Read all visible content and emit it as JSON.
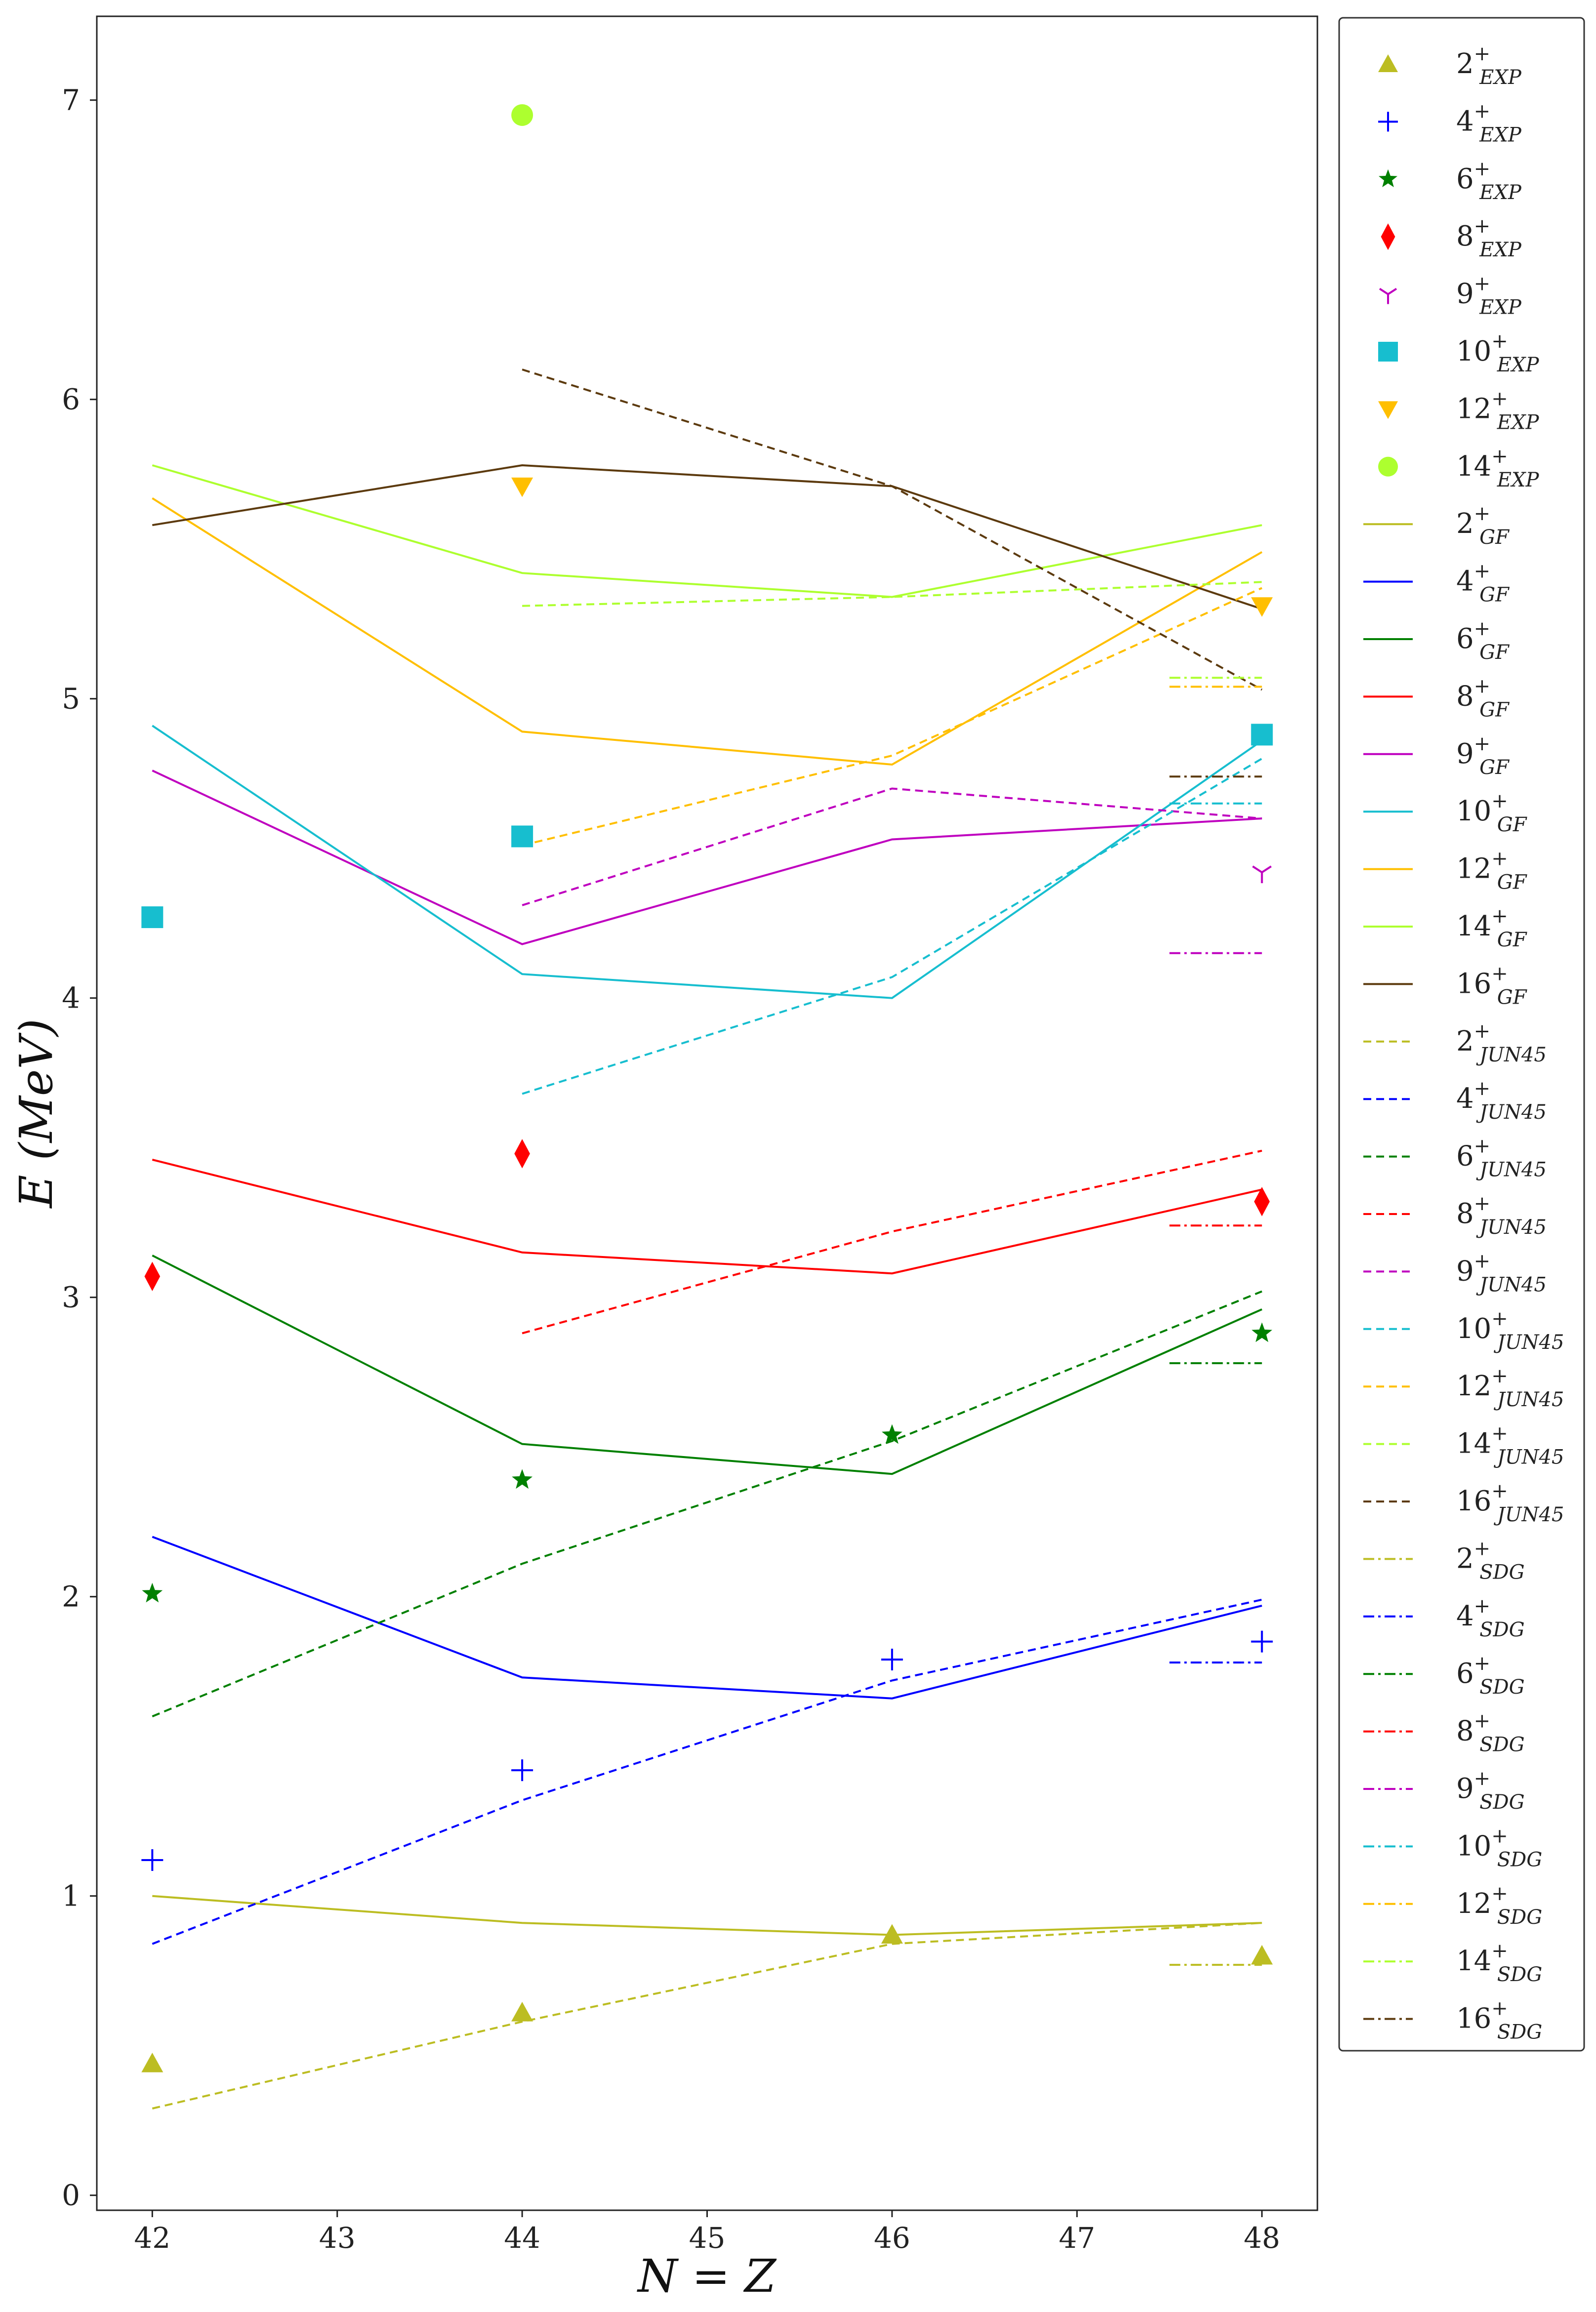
{
  "chart_data": {
    "type": "line",
    "title": "",
    "xlabel": "N = Z",
    "ylabel": "E (MeV)",
    "xlim": [
      41.7,
      48.3
    ],
    "ylim": [
      -0.05,
      7.28
    ],
    "xticks": [
      "42",
      "43",
      "44",
      "45",
      "46",
      "47",
      "48"
    ],
    "yticks": [
      "0",
      "1",
      "2",
      "3",
      "4",
      "5",
      "6",
      "7"
    ],
    "grid": false,
    "legend_position": "outside-right",
    "colors": {
      "2": "#bcbd22",
      "4": "#0000ff",
      "6": "#008000",
      "8": "#ff0000",
      "9": "#bf00bf",
      "10": "#17becf",
      "12": "#ffbf00",
      "14": "#adff2f",
      "16": "#5c3a0e"
    },
    "experimental": [
      {
        "name": "2",
        "label": "EXP",
        "marker": "triangle-up",
        "x": [
          42,
          44,
          46,
          48
        ],
        "y": [
          0.44,
          0.61,
          0.87,
          0.8
        ]
      },
      {
        "name": "4",
        "label": "EXP",
        "marker": "plus",
        "x": [
          42,
          44,
          46,
          48
        ],
        "y": [
          1.12,
          1.42,
          1.79,
          1.85
        ]
      },
      {
        "name": "6",
        "label": "EXP",
        "marker": "star",
        "x": [
          42,
          44,
          46,
          48
        ],
        "y": [
          2.01,
          2.39,
          2.54,
          2.88
        ]
      },
      {
        "name": "8",
        "label": "EXP",
        "marker": "thin-diamond",
        "x": [
          42,
          44,
          48
        ],
        "y": [
          3.07,
          3.48,
          3.32
        ]
      },
      {
        "name": "9",
        "label": "EXP",
        "marker": "tri-down",
        "x": [
          48
        ],
        "y": [
          4.42
        ]
      },
      {
        "name": "10",
        "label": "EXP",
        "marker": "square",
        "x": [
          42,
          44,
          48
        ],
        "y": [
          4.27,
          4.54,
          4.88
        ]
      },
      {
        "name": "12",
        "label": "EXP",
        "marker": "triangle-down",
        "x": [
          44,
          48
        ],
        "y": [
          5.71,
          5.31
        ]
      },
      {
        "name": "14",
        "label": "EXP",
        "marker": "circle",
        "x": [
          44
        ],
        "y": [
          6.95
        ]
      }
    ],
    "gf": [
      {
        "name": "2",
        "label": "GF",
        "x": [
          42,
          44,
          46,
          48
        ],
        "y": [
          1.0,
          0.91,
          0.87,
          0.91
        ]
      },
      {
        "name": "4",
        "label": "GF",
        "x": [
          42,
          44,
          46,
          48
        ],
        "y": [
          2.2,
          1.73,
          1.66,
          1.97
        ]
      },
      {
        "name": "6",
        "label": "GF",
        "x": [
          42,
          44,
          46,
          48
        ],
        "y": [
          3.14,
          2.51,
          2.41,
          2.96
        ]
      },
      {
        "name": "8",
        "label": "GF",
        "x": [
          42,
          44,
          46,
          48
        ],
        "y": [
          3.46,
          3.15,
          3.08,
          3.36
        ]
      },
      {
        "name": "9",
        "label": "GF",
        "x": [
          42,
          44,
          46,
          48
        ],
        "y": [
          4.76,
          4.18,
          4.53,
          4.6
        ]
      },
      {
        "name": "10",
        "label": "GF",
        "x": [
          42,
          44,
          46,
          48
        ],
        "y": [
          4.91,
          4.08,
          4.0,
          4.86
        ]
      },
      {
        "name": "12",
        "label": "GF",
        "x": [
          42,
          44,
          46,
          48
        ],
        "y": [
          5.67,
          4.89,
          4.78,
          5.49
        ]
      },
      {
        "name": "14",
        "label": "GF",
        "x": [
          42,
          44,
          46,
          48
        ],
        "y": [
          5.78,
          5.42,
          5.34,
          5.58
        ]
      },
      {
        "name": "16",
        "label": "GF",
        "x": [
          42,
          44,
          46,
          48
        ],
        "y": [
          5.58,
          5.78,
          5.71,
          5.3
        ]
      }
    ],
    "jun45": [
      {
        "name": "2",
        "label": "JUN45",
        "x": [
          42,
          44,
          46,
          48
        ],
        "y": [
          0.29,
          0.58,
          0.84,
          0.91
        ]
      },
      {
        "name": "4",
        "label": "JUN45",
        "x": [
          42,
          44,
          46,
          48
        ],
        "y": [
          0.84,
          1.32,
          1.72,
          1.99
        ]
      },
      {
        "name": "6",
        "label": "JUN45",
        "x": [
          42,
          44,
          46,
          48
        ],
        "y": [
          1.6,
          2.11,
          2.52,
          3.02
        ]
      },
      {
        "name": "8",
        "label": "JUN45",
        "x": [
          44,
          46,
          48
        ],
        "y": [
          2.88,
          3.22,
          3.49
        ]
      },
      {
        "name": "9",
        "label": "JUN45",
        "x": [
          44,
          46,
          48
        ],
        "y": [
          4.31,
          4.7,
          4.6
        ]
      },
      {
        "name": "10",
        "label": "JUN45",
        "x": [
          44,
          46,
          48
        ],
        "y": [
          3.68,
          4.07,
          4.8
        ]
      },
      {
        "name": "12",
        "label": "JUN45",
        "x": [
          44,
          46,
          48
        ],
        "y": [
          4.51,
          4.81,
          5.37
        ]
      },
      {
        "name": "14",
        "label": "JUN45",
        "x": [
          44,
          46,
          48
        ],
        "y": [
          5.31,
          5.34,
          5.39
        ]
      },
      {
        "name": "16",
        "label": "JUN45",
        "x": [
          44,
          46,
          48
        ],
        "y": [
          6.1,
          5.71,
          5.03
        ]
      }
    ],
    "sdg": [
      {
        "name": "2",
        "label": "SDG",
        "x": [
          47.5,
          48
        ],
        "y": [
          0.77,
          0.77
        ]
      },
      {
        "name": "4",
        "label": "SDG",
        "x": [
          47.5,
          48
        ],
        "y": [
          1.78,
          1.78
        ]
      },
      {
        "name": "6",
        "label": "SDG",
        "x": [
          47.5,
          48
        ],
        "y": [
          2.78,
          2.78
        ]
      },
      {
        "name": "8",
        "label": "SDG",
        "x": [
          47.5,
          48
        ],
        "y": [
          3.24,
          3.24
        ]
      },
      {
        "name": "9",
        "label": "SDG",
        "x": [
          47.5,
          48
        ],
        "y": [
          4.15,
          4.15
        ]
      },
      {
        "name": "10",
        "label": "SDG",
        "x": [
          47.5,
          48
        ],
        "y": [
          4.65,
          4.65
        ]
      },
      {
        "name": "12",
        "label": "SDG",
        "x": [
          47.5,
          48
        ],
        "y": [
          5.04,
          5.04
        ]
      },
      {
        "name": "14",
        "label": "SDG",
        "x": [
          47.5,
          48
        ],
        "y": [
          5.07,
          5.07
        ]
      },
      {
        "name": "16",
        "label": "SDG",
        "x": [
          47.5,
          48
        ],
        "y": [
          4.74,
          4.74
        ]
      }
    ]
  }
}
